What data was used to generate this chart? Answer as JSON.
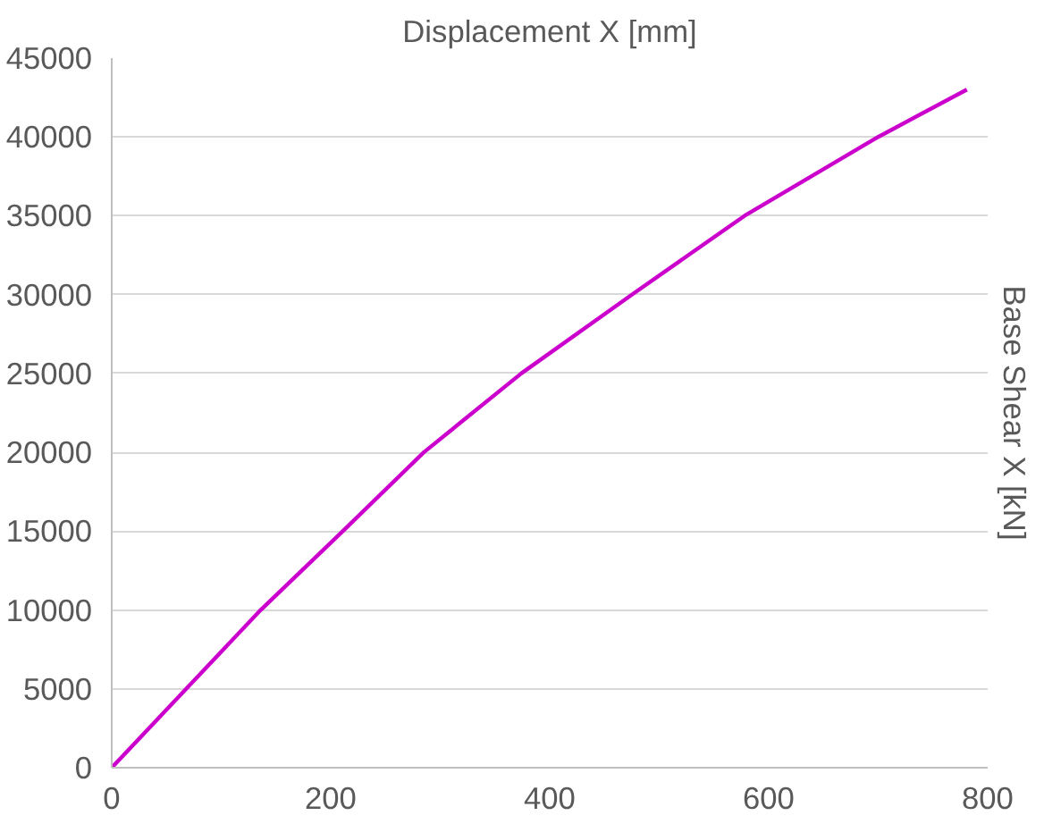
{
  "chart_data": {
    "type": "line",
    "xlabel": "Displacement X [mm]",
    "ylabel": "Base Shear X [kN]",
    "x": [
      0,
      68,
      136,
      211,
      285,
      374,
      475,
      578,
      700,
      781
    ],
    "series": [
      {
        "color": "#cc00cc",
        "values": [
          0,
          5000,
          10000,
          15000,
          20000,
          25000,
          30000,
          35000,
          40000,
          43000
        ]
      }
    ],
    "xlim": [
      0,
      800
    ],
    "xticks": [
      0,
      200,
      400,
      600,
      800
    ],
    "ylim": [
      0,
      45000
    ],
    "yticks": [
      0,
      5000,
      10000,
      15000,
      20000,
      25000,
      30000,
      35000,
      40000,
      45000
    ],
    "grid": "y",
    "marker": "none",
    "line_style": "solid"
  }
}
